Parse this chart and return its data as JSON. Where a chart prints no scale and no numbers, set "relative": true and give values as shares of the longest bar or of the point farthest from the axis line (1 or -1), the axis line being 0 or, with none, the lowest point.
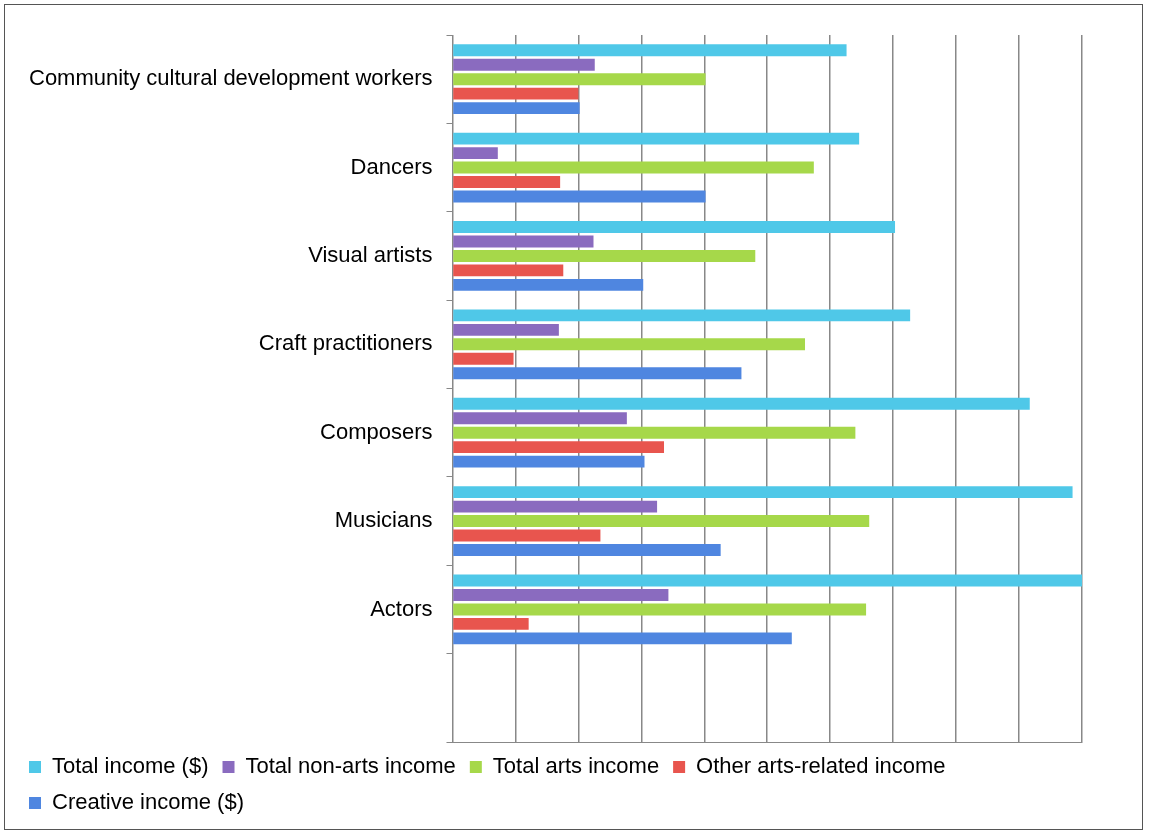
{
  "chart_data": {
    "type": "bar",
    "orientation": "horizontal",
    "relative": true,
    "grid": "x",
    "legend": "bottom",
    "categories": [
      "Community cultural development workers",
      "Dancers",
      "Visual artists",
      "Craft practitioners",
      "Composers",
      "Musicians",
      "Actors",
      null
    ],
    "series": [
      {
        "name": "Total income ($)",
        "color": "#4fc8e8",
        "values": [
          0.626,
          0.646,
          0.703,
          0.727,
          0.917,
          0.985,
          1,
          null
        ]
      },
      {
        "name": "Total non-arts income",
        "color": "#8a6bbf",
        "values": [
          0.226,
          0.072,
          0.224,
          0.169,
          0.277,
          0.325,
          0.343,
          null
        ]
      },
      {
        "name": "Total arts income",
        "color": "#a6d84a",
        "values": [
          0.402,
          0.574,
          0.481,
          0.56,
          0.64,
          0.662,
          0.657,
          null
        ]
      },
      {
        "name": "Other arts-related income",
        "color": "#e8554e",
        "values": [
          0.2,
          0.171,
          0.176,
          0.097,
          0.336,
          0.235,
          0.121,
          null
        ]
      },
      {
        "name": "Creative income ($)",
        "color": "#4f86e0",
        "values": [
          0.202,
          0.402,
          0.303,
          0.459,
          0.305,
          0.426,
          0.539,
          null
        ]
      }
    ]
  }
}
